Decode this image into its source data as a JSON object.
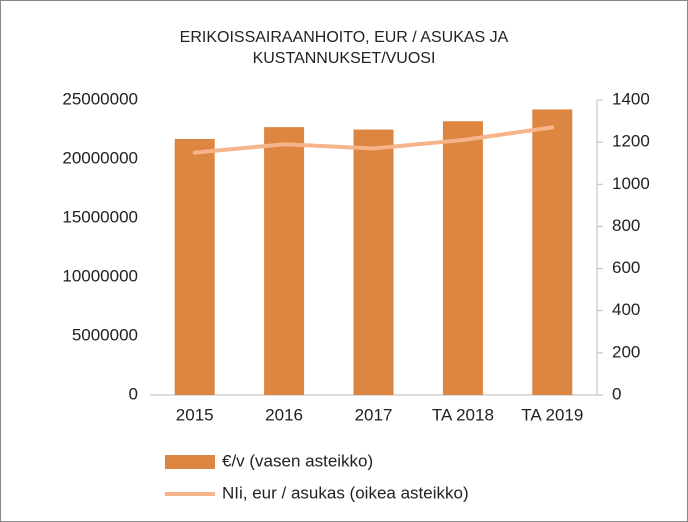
{
  "chart_data": {
    "type": "bar-line",
    "title": [
      "ERIKOISSAIRAANHOITO,  EUR / ASUKAS JA",
      "KUSTANNUKSET/VUOSI"
    ],
    "categories": [
      "2015",
      "2016",
      "2017",
      "TA 2018",
      "TA 2019"
    ],
    "series": [
      {
        "name": "€/v (vasen asteikko)",
        "type": "bar",
        "color": "#dc8641",
        "values": [
          21700000,
          22700000,
          22500000,
          23200000,
          24200000
        ]
      },
      {
        "name": "NIi, eur / asukas (oikea asteikko)",
        "type": "line",
        "axis": "y2",
        "color": "#f7b389",
        "values": [
          1150,
          1190,
          1170,
          1210,
          1270
        ]
      }
    ],
    "ylim": [
      0,
      25000000
    ],
    "yticks": [
      0,
      5000000,
      10000000,
      15000000,
      20000000,
      25000000
    ],
    "y2lim": [
      0,
      1400
    ],
    "y2ticks": [
      0,
      200,
      400,
      600,
      800,
      1000,
      1200,
      1400
    ]
  }
}
